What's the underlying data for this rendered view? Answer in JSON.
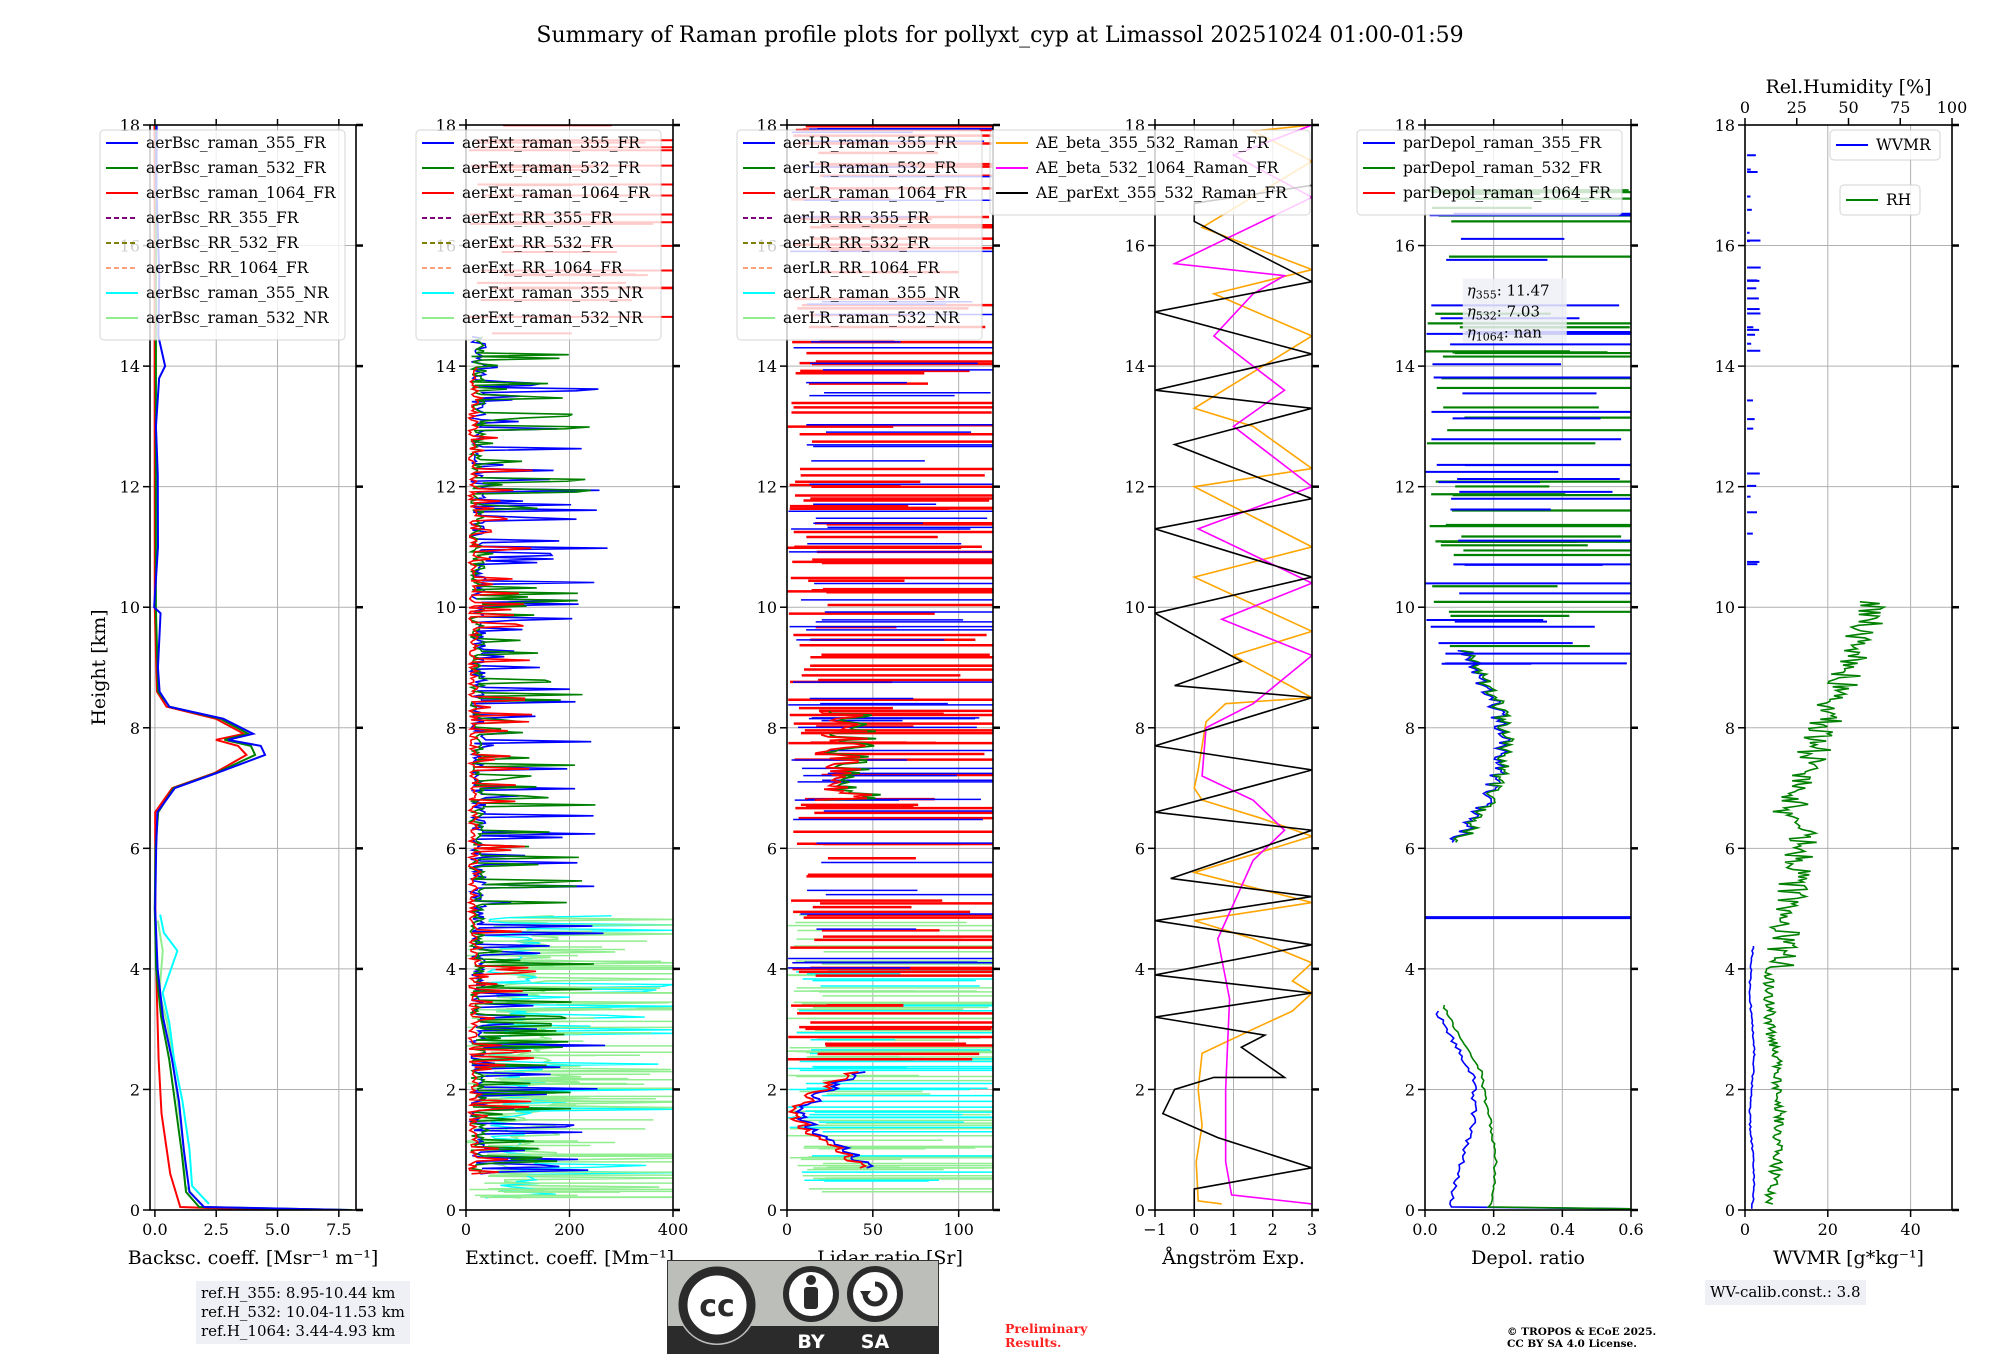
{
  "title": "Summary of Raman profile plots for pollyxt_cyp at Limassol 20251024 01:00-01:59",
  "reference_heights": [
    "ref.H_355: 8.95-10.44 km",
    "ref.H_532: 10.04-11.53 km",
    "ref.H_1064: 3.44-4.93 km"
  ],
  "wv_calibration": "WV-calib.const.: 3.8",
  "preliminary": [
    "Preliminary",
    "Results."
  ],
  "copyright": [
    "© TROPOS & ECoE 2025.",
    "CC BY SA 4.0 License."
  ],
  "license_badge": {
    "cc": "cc",
    "by": "BY",
    "sa": "SA"
  },
  "chart_data": [
    {
      "type": "line",
      "id": "backscatter",
      "ylabel": "Height [km]",
      "xlabel": "Backsc. coeff. [Msr⁻¹ m⁻¹]",
      "xlim": [
        -0.2,
        8.2
      ],
      "ylim": [
        0,
        18
      ],
      "xticks": [
        "0.0",
        "2.5",
        "5.0",
        "7.5"
      ],
      "xtick_values": [
        0,
        2.5,
        5,
        7.5
      ],
      "yticks": [
        "0",
        "2",
        "4",
        "6",
        "8",
        "10",
        "12",
        "14",
        "16",
        "18"
      ],
      "grid": true,
      "legend_position": "top-left",
      "series": [
        {
          "name": "aerBsc_raman_355_FR",
          "color": "#0000ff",
          "style": "solid",
          "points": [
            [
              7.9,
              0
            ],
            [
              2.0,
              0.05
            ],
            [
              1.4,
              0.3
            ],
            [
              1.2,
              1.0
            ],
            [
              0.95,
              1.8
            ],
            [
              0.7,
              2.5
            ],
            [
              0.3,
              3.2
            ],
            [
              0.1,
              4.0
            ],
            [
              0.0,
              5.0
            ],
            [
              0.05,
              6.0
            ],
            [
              0.1,
              6.6
            ],
            [
              0.8,
              7.0
            ],
            [
              2.5,
              7.25
            ],
            [
              4.5,
              7.55
            ],
            [
              4.3,
              7.7
            ],
            [
              3.0,
              7.8
            ],
            [
              4.0,
              7.9
            ],
            [
              2.8,
              8.15
            ],
            [
              0.6,
              8.35
            ],
            [
              0.2,
              8.6
            ],
            [
              0.1,
              9.0
            ],
            [
              0.2,
              9.9
            ],
            [
              0.0,
              10.0
            ],
            [
              0.1,
              11
            ],
            [
              0.15,
              12.2
            ],
            [
              0.05,
              13
            ],
            [
              0.2,
              13.8
            ],
            [
              0.45,
              14.0
            ],
            [
              0.1,
              14.5
            ],
            [
              0.2,
              15.5
            ],
            [
              0.05,
              17
            ],
            [
              0.1,
              18
            ]
          ]
        },
        {
          "name": "aerBsc_raman_532_FR",
          "color": "#008000",
          "style": "solid",
          "points": [
            [
              8.0,
              0
            ],
            [
              1.8,
              0.05
            ],
            [
              1.25,
              0.3
            ],
            [
              1.05,
              1.0
            ],
            [
              0.85,
              1.8
            ],
            [
              0.6,
              2.5
            ],
            [
              0.25,
              3.2
            ],
            [
              0.05,
              4.0
            ],
            [
              0.0,
              5.0
            ],
            [
              0.05,
              6.0
            ],
            [
              0.1,
              6.6
            ],
            [
              0.8,
              7.0
            ],
            [
              2.5,
              7.25
            ],
            [
              4.1,
              7.55
            ],
            [
              3.9,
              7.7
            ],
            [
              2.8,
              7.8
            ],
            [
              3.8,
              7.9
            ],
            [
              2.7,
              8.15
            ],
            [
              0.6,
              8.35
            ],
            [
              0.15,
              8.6
            ],
            [
              0.05,
              10
            ],
            [
              0.05,
              18
            ]
          ]
        },
        {
          "name": "aerBsc_raman_1064_FR",
          "color": "#ff0000",
          "style": "solid",
          "points": [
            [
              4.5,
              0
            ],
            [
              1.0,
              0.05
            ],
            [
              0.6,
              0.6
            ],
            [
              0.3,
              1.6
            ],
            [
              0.15,
              2.5
            ],
            [
              0.05,
              3.5
            ],
            [
              0.0,
              5.0
            ],
            [
              0.0,
              6.6
            ],
            [
              0.7,
              7.0
            ],
            [
              2.4,
              7.25
            ],
            [
              3.7,
              7.55
            ],
            [
              3.4,
              7.7
            ],
            [
              2.5,
              7.8
            ],
            [
              3.6,
              7.9
            ],
            [
              2.5,
              8.15
            ],
            [
              0.5,
              8.35
            ],
            [
              0.1,
              8.6
            ],
            [
              0.0,
              10
            ],
            [
              0.0,
              18
            ]
          ]
        },
        {
          "name": "aerBsc_RR_355_FR",
          "color": "#800080",
          "style": "dashed",
          "points": []
        },
        {
          "name": "aerBsc_RR_532_FR",
          "color": "#808000",
          "style": "dashed",
          "points": []
        },
        {
          "name": "aerBsc_RR_1064_FR",
          "color": "#ffa07a",
          "style": "dashed",
          "points": []
        },
        {
          "name": "aerBsc_raman_355_NR",
          "color": "#00ffff",
          "style": "solid",
          "points": [
            [
              2.2,
              0.1
            ],
            [
              1.5,
              0.4
            ],
            [
              1.4,
              1.0
            ],
            [
              1.1,
              1.8
            ],
            [
              0.8,
              2.5
            ],
            [
              0.6,
              3.1
            ],
            [
              0.3,
              3.6
            ],
            [
              0.9,
              4.3
            ],
            [
              0.4,
              4.6
            ],
            [
              0.2,
              4.9
            ]
          ]
        },
        {
          "name": "aerBsc_raman_532_NR",
          "color": "#90ee90",
          "style": "solid",
          "points": [
            [
              1.9,
              0.1
            ],
            [
              1.2,
              0.4
            ],
            [
              1.2,
              1.0
            ],
            [
              0.95,
              1.8
            ],
            [
              0.7,
              2.5
            ],
            [
              0.5,
              3.1
            ],
            [
              0.2,
              3.6
            ],
            [
              0.3,
              4.3
            ],
            [
              0.1,
              4.8
            ]
          ]
        }
      ]
    },
    {
      "type": "line",
      "id": "extinction",
      "xlabel": "Extinct. coeff. [Mm⁻¹]",
      "xlim": [
        0,
        400
      ],
      "ylim": [
        0,
        18
      ],
      "xticks": [
        "0",
        "200",
        "400"
      ],
      "xtick_values": [
        0,
        200,
        400
      ],
      "yticks": [
        "0",
        "2",
        "4",
        "6",
        "8",
        "10",
        "12",
        "14",
        "16",
        "18"
      ],
      "grid": true,
      "legend_position": "top-left",
      "series": [
        {
          "name": "aerExt_raman_355_FR",
          "color": "#0000ff",
          "style": "solid",
          "noisy": true,
          "range": [
            0.6,
            14.5
          ],
          "base": 40,
          "spread": 80
        },
        {
          "name": "aerExt_raman_532_FR",
          "color": "#008000",
          "style": "solid",
          "noisy": true,
          "range": [
            0.6,
            14.5
          ],
          "base": 35,
          "spread": 70
        },
        {
          "name": "aerExt_raman_1064_FR",
          "color": "#ff0000",
          "style": "solid",
          "noisy": true,
          "range": [
            0.6,
            18
          ],
          "base": 20,
          "spread": 40
        },
        {
          "name": "aerExt_RR_355_FR",
          "color": "#800080",
          "style": "dashed"
        },
        {
          "name": "aerExt_RR_532_FR",
          "color": "#808000",
          "style": "dashed"
        },
        {
          "name": "aerExt_RR_1064_FR",
          "color": "#ffa07a",
          "style": "dashed"
        },
        {
          "name": "aerExt_raman_355_NR",
          "color": "#00ffff",
          "style": "solid",
          "noisy": true,
          "range": [
            0.2,
            4.9
          ],
          "base": 120,
          "spread": 250
        },
        {
          "name": "aerExt_raman_532_NR",
          "color": "#90ee90",
          "style": "solid",
          "noisy": true,
          "range": [
            0.2,
            4.9
          ],
          "base": 130,
          "spread": 270
        }
      ]
    },
    {
      "type": "line",
      "id": "lidar_ratio",
      "xlabel": "Lidar ratio [Sr]",
      "xlim": [
        0,
        120
      ],
      "ylim": [
        0,
        18
      ],
      "xticks": [
        "0",
        "50",
        "100"
      ],
      "xtick_values": [
        0,
        50,
        100
      ],
      "yticks": [
        "0",
        "2",
        "4",
        "6",
        "8",
        "10",
        "12",
        "14",
        "16",
        "18"
      ],
      "grid": true,
      "legend_position": "top-left",
      "series": [
        {
          "name": "aerLR_raman_355_FR",
          "color": "#0000ff",
          "style": "solid"
        },
        {
          "name": "aerLR_raman_532_FR",
          "color": "#008000",
          "style": "solid"
        },
        {
          "name": "aerLR_raman_1064_FR",
          "color": "#ff0000",
          "style": "solid"
        },
        {
          "name": "aerLR_RR_355_FR",
          "color": "#800080",
          "style": "dashed"
        },
        {
          "name": "aerLR_RR_532_FR",
          "color": "#808000",
          "style": "dashed"
        },
        {
          "name": "aerLR_RR_1064_FR",
          "color": "#ffa07a",
          "style": "dashed"
        },
        {
          "name": "aerLR_raman_355_NR",
          "color": "#00ffff",
          "style": "solid"
        },
        {
          "name": "aerLR_raman_532_NR",
          "color": "#90ee90",
          "style": "solid"
        }
      ]
    },
    {
      "type": "line",
      "id": "angstrom",
      "xlabel": "Ångström Exp.",
      "xlim": [
        -1,
        3
      ],
      "ylim": [
        0,
        18
      ],
      "xticks": [
        "−1",
        "0",
        "1",
        "2",
        "3"
      ],
      "xtick_values": [
        -1,
        0,
        1,
        2,
        3
      ],
      "yticks": [
        "0",
        "2",
        "4",
        "6",
        "8",
        "10",
        "12",
        "14",
        "16",
        "18"
      ],
      "grid": true,
      "legend_position": "top-center",
      "series": [
        {
          "name": "AE_beta_355_532_Raman_FR",
          "color": "#ffa500",
          "style": "solid"
        },
        {
          "name": "AE_beta_532_1064_Raman_FR",
          "color": "#ff00ff",
          "style": "solid"
        },
        {
          "name": "AE_parExt_355_532_Raman_FR",
          "color": "#000000",
          "style": "solid"
        }
      ]
    },
    {
      "type": "line",
      "id": "depolarization",
      "xlabel": "Depol. ratio",
      "xlim": [
        0,
        0.6
      ],
      "ylim": [
        0,
        18
      ],
      "xticks": [
        "0.0",
        "0.2",
        "0.4",
        "0.6"
      ],
      "xtick_values": [
        0,
        0.2,
        0.4,
        0.6
      ],
      "yticks": [
        "0",
        "2",
        "4",
        "6",
        "8",
        "10",
        "12",
        "14",
        "16",
        "18"
      ],
      "grid": true,
      "legend_position": "top-left",
      "annotation": {
        "eta_355": "11.47",
        "eta_532": "7.03",
        "eta_1064": "nan"
      },
      "series": [
        {
          "name": "parDepol_raman_355_FR",
          "color": "#0000ff",
          "style": "solid"
        },
        {
          "name": "parDepol_raman_532_FR",
          "color": "#008000",
          "style": "solid"
        },
        {
          "name": "parDepol_raman_1064_FR",
          "color": "#ff0000",
          "style": "solid"
        }
      ]
    },
    {
      "type": "line",
      "id": "water_vapor",
      "xlabel": "WVMR [g*kg⁻¹]",
      "xlabel_top": "Rel.Humidity [%]",
      "xlim": [
        0,
        50
      ],
      "xlim_top": [
        0,
        100
      ],
      "ylim": [
        0,
        18
      ],
      "xticks": [
        "0",
        "20",
        "40"
      ],
      "xtick_values": [
        0,
        20,
        40
      ],
      "xticks_top": [
        "0",
        "25",
        "50",
        "75",
        "100"
      ],
      "xtick_values_top": [
        0,
        25,
        50,
        75,
        100
      ],
      "yticks": [
        "0",
        "2",
        "4",
        "6",
        "8",
        "10",
        "12",
        "14",
        "16",
        "18"
      ],
      "grid": true,
      "legend_position": "top-right",
      "series": [
        {
          "name": "WVMR",
          "color": "#0000ff",
          "style": "solid"
        },
        {
          "name": "RH",
          "color": "#008000",
          "style": "solid"
        }
      ]
    }
  ]
}
